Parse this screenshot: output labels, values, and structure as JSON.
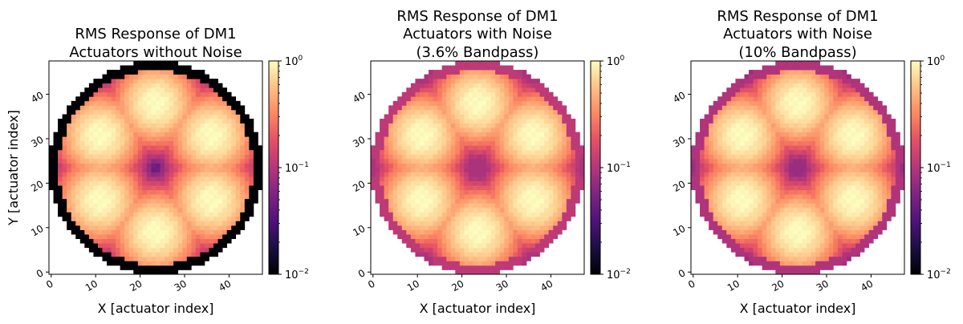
{
  "chart_data": [
    {
      "type": "heatmap",
      "title": [
        "RMS Response of DM1",
        "Actuators without Noise"
      ],
      "xlabel": "X [actuator index]",
      "ylabel": "Y [actuator index]",
      "xticks": [
        "0",
        "10",
        "20",
        "30",
        "40"
      ],
      "yticks": [
        "0",
        "10",
        "20",
        "30",
        "40"
      ],
      "grid_size": 48,
      "xlim": [
        0,
        47
      ],
      "ylim": [
        0,
        47
      ],
      "colormap": "magma",
      "color_scale": "log",
      "color_range": [
        0.01,
        1
      ],
      "colorbar_ticks": [
        {
          "base": "10",
          "exp": "0"
        },
        {
          "base": "10",
          "exp": "−1"
        },
        {
          "base": "10",
          "exp": "−2"
        }
      ],
      "noise_floor": 0.0,
      "aperture_edge_value": 0.002
    },
    {
      "type": "heatmap",
      "title": [
        "RMS Response of DM1",
        "Actuators with Noise",
        "(3.6% Bandpass)"
      ],
      "xlabel": "X [actuator index]",
      "ylabel": "",
      "xticks": [
        "0",
        "10",
        "20",
        "30",
        "40"
      ],
      "yticks": [
        "0",
        "10",
        "20",
        "30",
        "40"
      ],
      "grid_size": 48,
      "xlim": [
        0,
        47
      ],
      "ylim": [
        0,
        47
      ],
      "colormap": "magma",
      "color_scale": "log",
      "color_range": [
        0.01,
        1
      ],
      "colorbar_ticks": [
        {
          "base": "10",
          "exp": "0"
        },
        {
          "base": "10",
          "exp": "−1"
        },
        {
          "base": "10",
          "exp": "−2"
        }
      ],
      "noise_floor": 0.09,
      "aperture_edge_value": 0.11
    },
    {
      "type": "heatmap",
      "title": [
        "RMS Response of DM1",
        "Actuators with Noise",
        "(10% Bandpass)"
      ],
      "xlabel": "X [actuator index]",
      "ylabel": "",
      "xticks": [
        "0",
        "10",
        "20",
        "30",
        "40"
      ],
      "yticks": [
        "0",
        "10",
        "20",
        "30",
        "40"
      ],
      "grid_size": 48,
      "xlim": [
        0,
        47
      ],
      "ylim": [
        0,
        47
      ],
      "colormap": "magma",
      "color_scale": "log",
      "color_range": [
        0.01,
        1
      ],
      "colorbar_ticks": [
        {
          "base": "10",
          "exp": "0"
        },
        {
          "base": "10",
          "exp": "−1"
        },
        {
          "base": "10",
          "exp": "−2"
        }
      ],
      "noise_floor": 0.075,
      "aperture_edge_value": 0.095
    }
  ],
  "pattern": {
    "aperture_center": [
      23.5,
      23.5
    ],
    "aperture_radius": 24,
    "spot_ring_radius": 14.5,
    "spot_angles_deg": [
      90,
      30,
      -30,
      -90,
      -150,
      150
    ],
    "spot_sigma": 5.6,
    "spot_peak": 1.0
  }
}
